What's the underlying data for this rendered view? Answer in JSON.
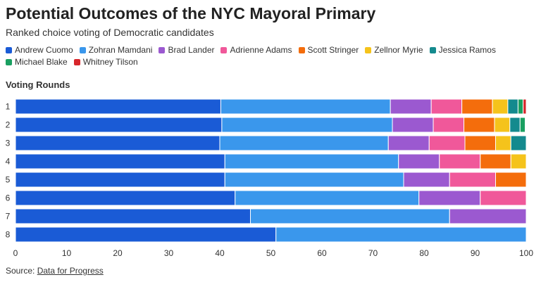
{
  "chart_data": {
    "type": "bar",
    "orientation": "horizontal",
    "stacked": true,
    "title": "Potential Outcomes of the NYC Mayoral Primary",
    "subtitle": "Ranked choice voting of Democratic candidates",
    "ylabel": "Voting Rounds",
    "xlabel": "",
    "xlim": [
      0,
      100
    ],
    "xticks": [
      0,
      10,
      20,
      30,
      40,
      50,
      60,
      70,
      80,
      90,
      100
    ],
    "grid": false,
    "legend_position": "top",
    "categories": [
      "1",
      "2",
      "3",
      "4",
      "5",
      "6",
      "7",
      "8"
    ],
    "series": [
      {
        "name": "Andrew Cuomo",
        "color": "#1a5bd6",
        "values": [
          40.2,
          40.4,
          40.0,
          41.0,
          41.0,
          43.0,
          46.0,
          51.0
        ]
      },
      {
        "name": "Zohran Mamdani",
        "color": "#3a97ec",
        "values": [
          33.2,
          33.4,
          33.0,
          34.0,
          35.0,
          36.0,
          39.0,
          49.0
        ]
      },
      {
        "name": "Brad Lander",
        "color": "#9b59d0",
        "values": [
          8.0,
          8.0,
          8.0,
          8.0,
          9.0,
          12.0,
          15.0,
          0
        ]
      },
      {
        "name": "Adrienne Adams",
        "color": "#f0589a",
        "values": [
          6.0,
          6.0,
          7.0,
          8.0,
          9.0,
          9.0,
          0,
          0
        ]
      },
      {
        "name": "Scott Stringer",
        "color": "#f46d0c",
        "values": [
          6.0,
          6.0,
          6.0,
          6.0,
          6.0,
          0,
          0,
          0
        ]
      },
      {
        "name": "Zellnor Myrie",
        "color": "#f5c31b",
        "values": [
          3.0,
          3.0,
          3.0,
          3.0,
          0,
          0,
          0,
          0
        ]
      },
      {
        "name": "Jessica Ramos",
        "color": "#148a8e",
        "values": [
          2.0,
          2.0,
          3.0,
          0,
          0,
          0,
          0,
          0
        ]
      },
      {
        "name": "Michael Blake",
        "color": "#1aa061",
        "values": [
          1.0,
          1.0,
          0,
          0,
          0,
          0,
          0,
          0
        ]
      },
      {
        "name": "Whitney Tilson",
        "color": "#d7262b",
        "values": [
          0.6,
          0,
          0,
          0,
          0,
          0,
          0,
          0
        ]
      }
    ]
  },
  "source": {
    "prefix": "Source: ",
    "link_text": "Data for Progress"
  }
}
